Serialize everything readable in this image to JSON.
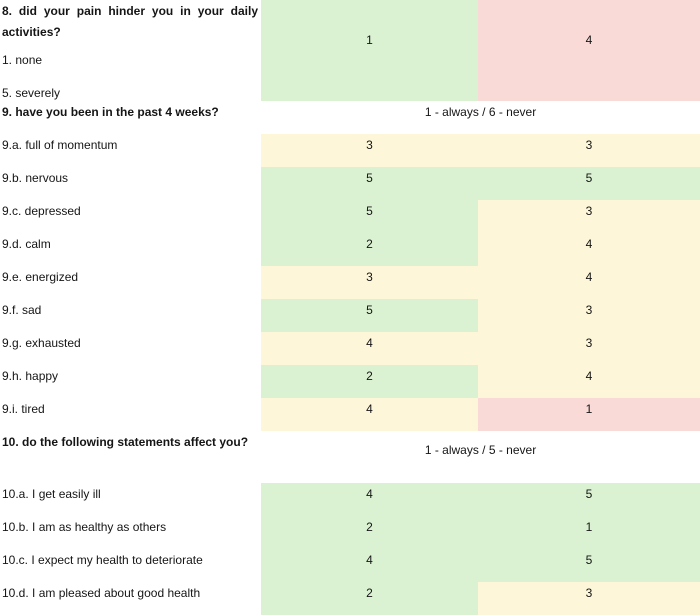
{
  "colors": {
    "green": "#daf2d1",
    "yellow": "#fdf6d8",
    "pink": "#f9dad6",
    "text": "#151515",
    "background": "#ffffff"
  },
  "table": {
    "rows": [
      {
        "kind": "question",
        "lines": [
          {
            "text": "8. did your pain hinder you in your daily activities?",
            "bold": true
          },
          {
            "text": "1. none",
            "bold": false
          },
          {
            "text": "5. severely",
            "bold": false
          }
        ],
        "values": [
          {
            "value": "1",
            "color": "green"
          },
          {
            "value": "4",
            "color": "pink"
          }
        ]
      },
      {
        "kind": "scale",
        "label": "9. have you been in the past 4 weeks?",
        "scale": "1 - always / 6 - never"
      },
      {
        "kind": "item",
        "label": "9.a. full of momentum",
        "values": [
          {
            "value": "3",
            "color": "yellow"
          },
          {
            "value": "3",
            "color": "yellow"
          }
        ]
      },
      {
        "kind": "item",
        "label": "9.b. nervous",
        "values": [
          {
            "value": "5",
            "color": "green"
          },
          {
            "value": "5",
            "color": "green"
          }
        ]
      },
      {
        "kind": "item",
        "label": "9.c. depressed",
        "values": [
          {
            "value": "5",
            "color": "green"
          },
          {
            "value": "3",
            "color": "yellow"
          }
        ]
      },
      {
        "kind": "item",
        "label": "9.d. calm",
        "values": [
          {
            "value": "2",
            "color": "green"
          },
          {
            "value": "4",
            "color": "yellow"
          }
        ]
      },
      {
        "kind": "item",
        "label": "9.e. energized",
        "values": [
          {
            "value": "3",
            "color": "yellow"
          },
          {
            "value": "4",
            "color": "yellow"
          }
        ]
      },
      {
        "kind": "item",
        "label": "9.f. sad",
        "values": [
          {
            "value": "5",
            "color": "green"
          },
          {
            "value": "3",
            "color": "yellow"
          }
        ]
      },
      {
        "kind": "item",
        "label": "9.g. exhausted",
        "values": [
          {
            "value": "4",
            "color": "yellow"
          },
          {
            "value": "3",
            "color": "yellow"
          }
        ]
      },
      {
        "kind": "item",
        "label": "9.h. happy",
        "values": [
          {
            "value": "2",
            "color": "green"
          },
          {
            "value": "4",
            "color": "yellow"
          }
        ]
      },
      {
        "kind": "item",
        "label": "9.i. tired",
        "values": [
          {
            "value": "4",
            "color": "yellow"
          },
          {
            "value": "1",
            "color": "pink"
          }
        ]
      },
      {
        "kind": "scale",
        "label": "10. do the following statements affect you?",
        "scale": "1 - always / 5 - never"
      },
      {
        "kind": "item",
        "label": "10.a. I get easily ill",
        "values": [
          {
            "value": "4",
            "color": "green"
          },
          {
            "value": "5",
            "color": "green"
          }
        ]
      },
      {
        "kind": "item",
        "label": "10.b. I am as healthy as others",
        "values": [
          {
            "value": "2",
            "color": "green"
          },
          {
            "value": "1",
            "color": "green"
          }
        ]
      },
      {
        "kind": "item",
        "label": "10.c. I expect my health to deteriorate",
        "values": [
          {
            "value": "4",
            "color": "green"
          },
          {
            "value": "5",
            "color": "green"
          }
        ]
      },
      {
        "kind": "item",
        "label": "10.d. I am pleased about good health",
        "values": [
          {
            "value": "2",
            "color": "green"
          },
          {
            "value": "3",
            "color": "yellow"
          }
        ]
      }
    ]
  }
}
